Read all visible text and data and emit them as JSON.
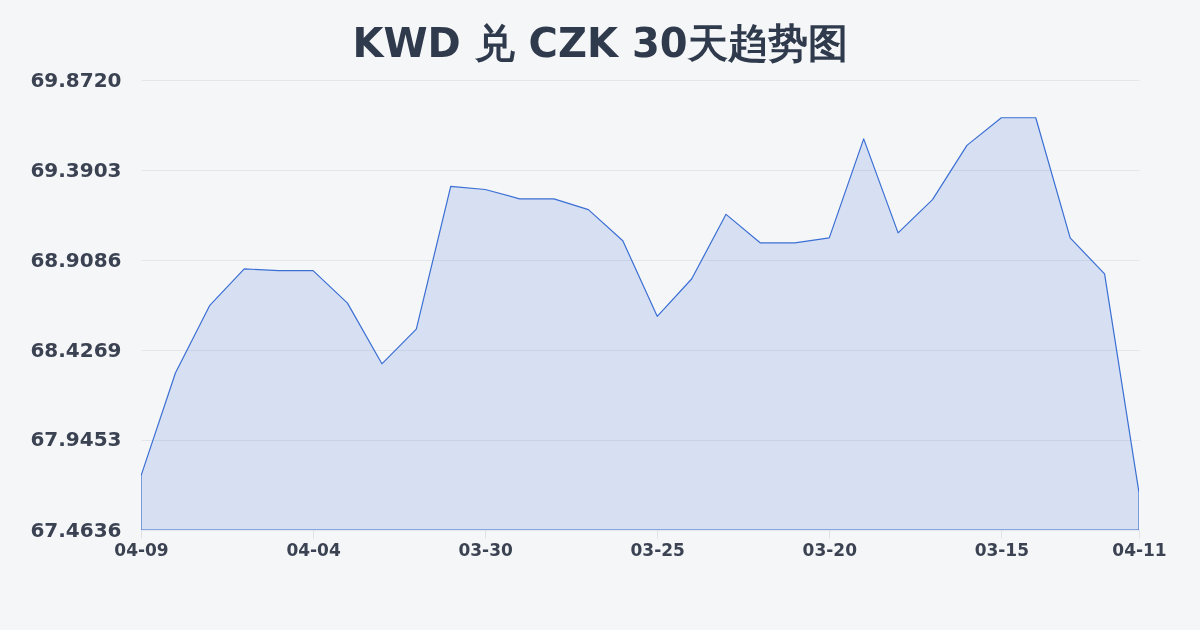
{
  "chart_data": {
    "type": "area",
    "title": "KWD 兑 CZK 30天趋势图",
    "categories": [
      "04-09",
      null,
      null,
      null,
      null,
      "04-04",
      null,
      null,
      null,
      null,
      "03-30",
      null,
      null,
      null,
      null,
      "03-25",
      null,
      null,
      null,
      null,
      "03-20",
      null,
      null,
      null,
      null,
      "03-15",
      null,
      null,
      null,
      "04-11"
    ],
    "values": [
      67.753,
      68.304,
      68.666,
      68.861,
      68.852,
      68.852,
      68.678,
      68.353,
      68.539,
      69.303,
      69.286,
      69.236,
      69.236,
      69.178,
      69.012,
      68.607,
      68.807,
      69.153,
      69.0,
      69.0,
      69.027,
      69.557,
      69.054,
      69.232,
      69.522,
      69.67,
      69.67,
      69.027,
      68.834,
      67.664
    ],
    "color": "#3b6fd4",
    "ylim": [
      67.4636,
      69.872
    ],
    "yticks": [
      67.4636,
      67.9453,
      68.4269,
      68.9086,
      69.3903,
      {
        "value": 69.872,
        "label": "69.8720"
      }
    ],
    "grid": "y"
  }
}
